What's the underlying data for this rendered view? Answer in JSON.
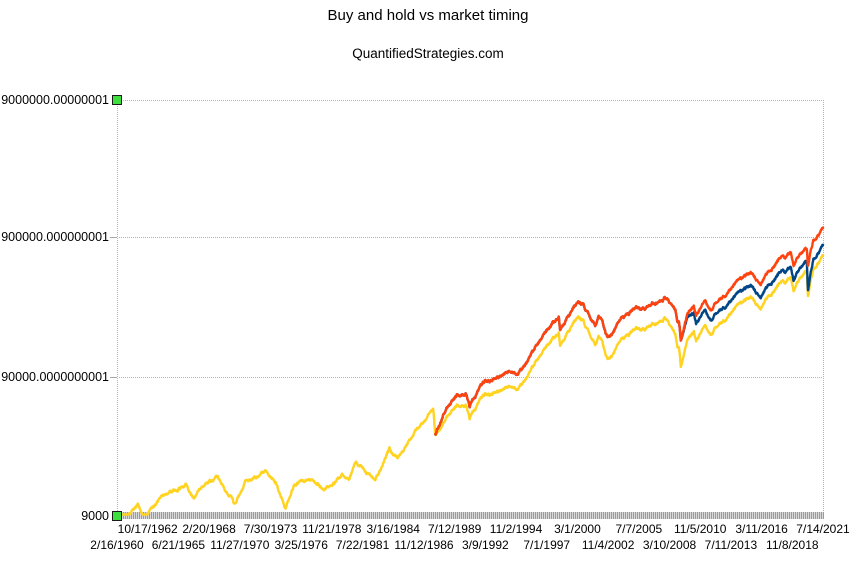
{
  "chart_data": {
    "type": "line",
    "title": "Buy and hold vs market timing",
    "subtitle": "QuantifiedStrategies.com",
    "legend": "none",
    "grid": "horizontal-dotted",
    "y_axis": {
      "scale": "log",
      "tick_labels": [
        "9000000.00000001",
        "900000.000000001",
        "90000.0000000001",
        "9000"
      ],
      "tick_values": [
        9000000.00000001,
        900000.000000001,
        90000.0000000001,
        9000
      ],
      "selected": true
    },
    "x_axis": {
      "tick_labels": [
        "2/16/1960",
        "10/17/1962",
        "6/21/1965",
        "2/20/1968",
        "11/27/1970",
        "7/30/1973",
        "3/25/1976",
        "11/21/1978",
        "7/22/1981",
        "3/16/1984",
        "11/12/1986",
        "7/12/1989",
        "3/9/1992",
        "11/2/1994",
        "7/1/1997",
        "3/1/2000",
        "11/4/2002",
        "7/7/2005",
        "3/10/2008",
        "11/5/2010",
        "7/11/2013",
        "11/8/2018",
        "3/11/2016",
        "7/14/2021"
      ],
      "tick_labels_ordered": [
        "2/16/1960",
        "10/17/1962",
        "6/21/1965",
        "2/20/1968",
        "11/27/1970",
        "7/30/1973",
        "3/25/1976",
        "11/21/1978",
        "7/22/1981",
        "3/16/1984",
        "11/12/1986",
        "7/12/1989",
        "3/9/1992",
        "11/2/1994",
        "7/1/1997",
        "3/1/2000",
        "11/4/2002",
        "7/7/2005",
        "3/10/2008",
        "11/5/2010",
        "7/11/2013",
        "3/11/2016",
        "11/8/2018",
        "7/14/2021"
      ]
    },
    "noise": {
      "seed": 90210,
      "points": 3100,
      "ar": 0.93,
      "step": 0.011,
      "jitter": 0.0035
    },
    "selection": {
      "handle_color": "#3CDF3C"
    },
    "series": [
      {
        "id": "buy-and-hold",
        "color": "#FFD320",
        "width": 2.4,
        "keypoints": [
          [
            1960.12,
            8800
          ],
          [
            1960.85,
            8400
          ],
          [
            1961.95,
            11500
          ],
          [
            1962.5,
            8400
          ],
          [
            1963.0,
            10000
          ],
          [
            1964.0,
            12150
          ],
          [
            1966.12,
            14900
          ],
          [
            1966.8,
            11600
          ],
          [
            1967.75,
            15300
          ],
          [
            1968.9,
            17200
          ],
          [
            1970.4,
            11000
          ],
          [
            1971.3,
            16100
          ],
          [
            1972.0,
            16350
          ],
          [
            1973.04,
            19050
          ],
          [
            1974.0,
            15300
          ],
          [
            1974.77,
            9900
          ],
          [
            1975.5,
            15100
          ],
          [
            1976.7,
            17100
          ],
          [
            1978.2,
            13800
          ],
          [
            1979.7,
            17300
          ],
          [
            1980.3,
            16100
          ],
          [
            1980.9,
            22300
          ],
          [
            1982.6,
            16250
          ],
          [
            1983.8,
            27300
          ],
          [
            1984.55,
            23400
          ],
          [
            1986.2,
            37800
          ],
          [
            1987.63,
            53400
          ],
          [
            1987.8,
            35700
          ],
          [
            1989.7,
            55700
          ],
          [
            1990.54,
            58500
          ],
          [
            1990.8,
            46900
          ],
          [
            1992.0,
            66100
          ],
          [
            1994.1,
            76400
          ],
          [
            1995.0,
            73000
          ],
          [
            1996.0,
            98000
          ],
          [
            1997.55,
            151300
          ],
          [
            1998.55,
            186700
          ],
          [
            1998.67,
            151800
          ],
          [
            1999.95,
            232900
          ],
          [
            2000.22,
            242100
          ],
          [
            2000.65,
            232000
          ],
          [
            2001.2,
            187000
          ],
          [
            2001.73,
            153000
          ],
          [
            2002.0,
            182000
          ],
          [
            2002.3,
            170000
          ],
          [
            2002.78,
            123200
          ],
          [
            2003.2,
            127000
          ],
          [
            2004.0,
            176000
          ],
          [
            2005.0,
            190000
          ],
          [
            2006.0,
            200000
          ],
          [
            2007.78,
            248200
          ],
          [
            2008.7,
            183000
          ],
          [
            2008.88,
            142000
          ],
          [
            2009.0,
            147000
          ],
          [
            2009.17,
            107300
          ],
          [
            2009.75,
            170000
          ],
          [
            2010.3,
            192000
          ],
          [
            2010.5,
            162000
          ],
          [
            2011.3,
            213000
          ],
          [
            2011.75,
            176000
          ],
          [
            2012.7,
            228000
          ],
          [
            2013.0,
            234000
          ],
          [
            2014.0,
            291000
          ],
          [
            2014.95,
            330000
          ],
          [
            2015.4,
            338000
          ],
          [
            2016.12,
            290000
          ],
          [
            2017.0,
            360000
          ],
          [
            2018.05,
            453000
          ],
          [
            2018.25,
            420000
          ],
          [
            2018.73,
            464700
          ],
          [
            2018.98,
            372900
          ],
          [
            2019.5,
            468000
          ],
          [
            2020.12,
            537000
          ],
          [
            2020.23,
            354800
          ],
          [
            2020.7,
            545000
          ],
          [
            2021.0,
            595000
          ],
          [
            2021.54,
            693700
          ]
        ]
      },
      {
        "id": "timing-strategy-b",
        "color": "#004586",
        "width": 2.4,
        "base": "buy-and-hold",
        "start": 1987.8,
        "ratio_keypoints": [
          [
            1987.8,
            1.0
          ],
          [
            1988.5,
            1.15
          ],
          [
            1990.8,
            1.22
          ],
          [
            1994.0,
            1.28
          ],
          [
            1998.8,
            1.3
          ],
          [
            2000.22,
            1.28
          ],
          [
            2001.5,
            1.36
          ],
          [
            2002.78,
            1.44
          ],
          [
            2004.0,
            1.42
          ],
          [
            2007.78,
            1.4
          ],
          [
            2009.17,
            1.55
          ],
          [
            2010.5,
            1.33
          ],
          [
            2012.0,
            1.26
          ],
          [
            2014.0,
            1.22
          ],
          [
            2017.0,
            1.2
          ],
          [
            2020.12,
            1.18
          ],
          [
            2020.23,
            1.1
          ],
          [
            2020.7,
            1.17
          ],
          [
            2021.54,
            1.19
          ]
        ]
      },
      {
        "id": "timing-strategy-a",
        "color": "#FF420E",
        "width": 2.4,
        "base": "buy-and-hold",
        "start": 1987.8,
        "ratio_keypoints": [
          [
            1987.8,
            1.0
          ],
          [
            1988.5,
            1.15
          ],
          [
            1990.8,
            1.22
          ],
          [
            1994.0,
            1.28
          ],
          [
            1998.8,
            1.3
          ],
          [
            2000.22,
            1.28
          ],
          [
            2001.5,
            1.36
          ],
          [
            2002.78,
            1.44
          ],
          [
            2004.0,
            1.42
          ],
          [
            2007.78,
            1.4
          ],
          [
            2009.17,
            1.55
          ],
          [
            2011.8,
            1.5
          ],
          [
            2016.0,
            1.5
          ],
          [
            2018.98,
            1.52
          ],
          [
            2020.12,
            1.46
          ],
          [
            2020.23,
            1.66
          ],
          [
            2020.7,
            1.6
          ],
          [
            2021.54,
            1.58
          ]
        ]
      }
    ]
  }
}
